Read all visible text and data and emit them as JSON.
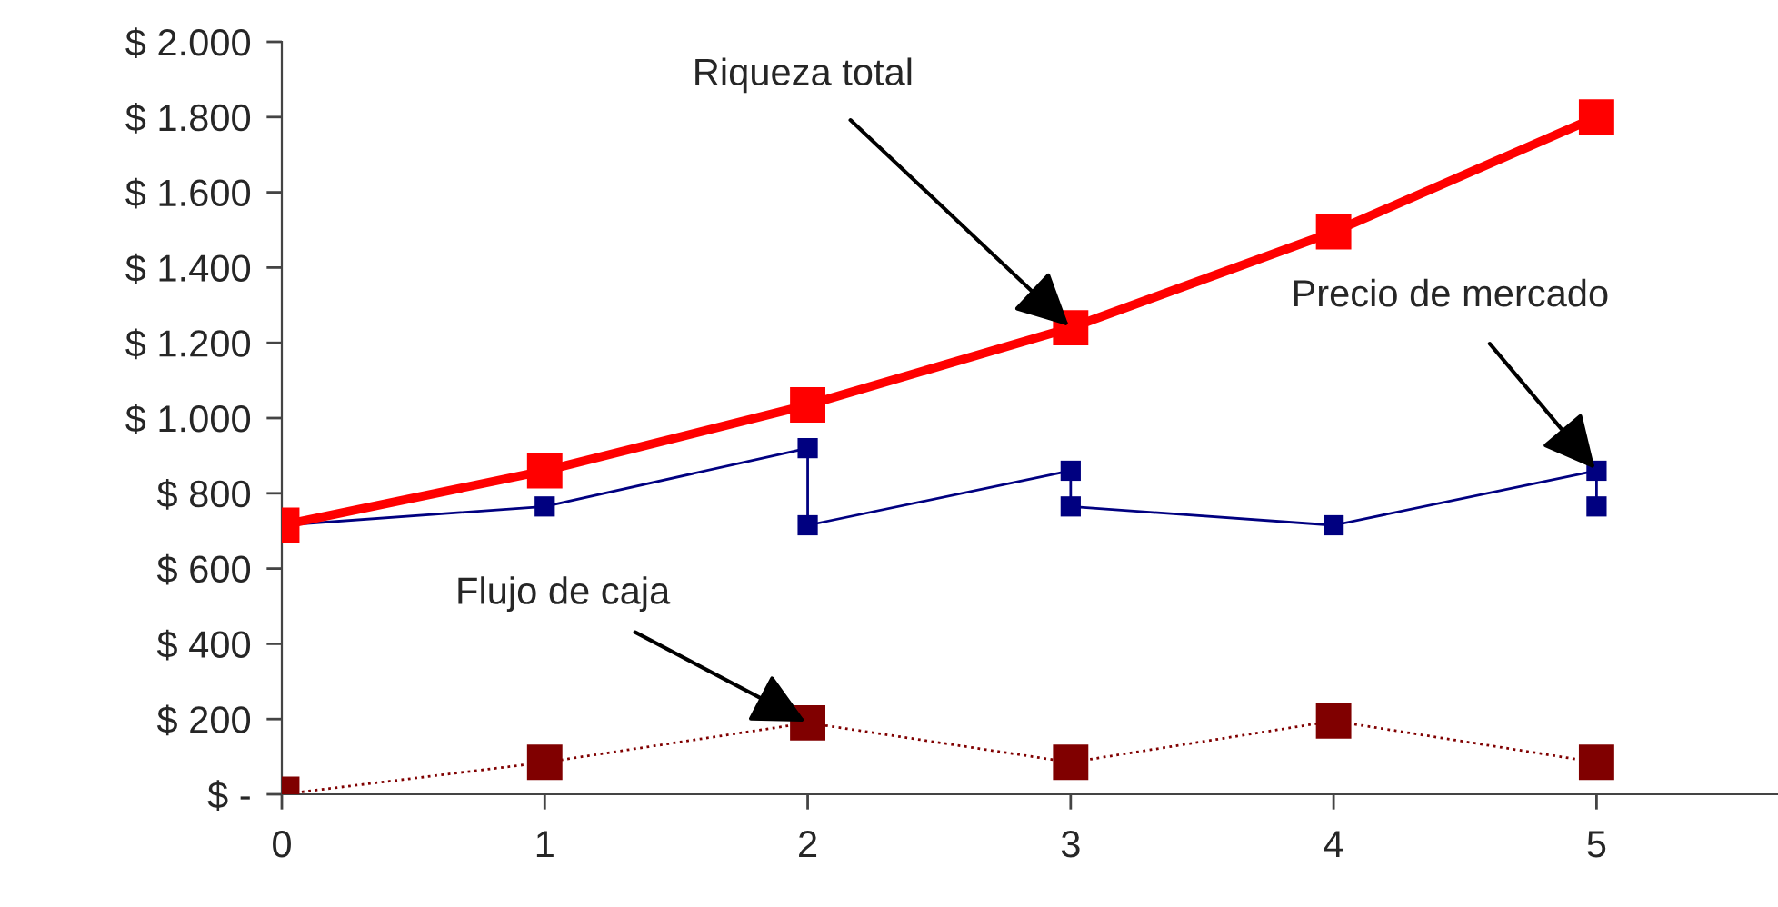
{
  "chart_data": {
    "type": "line",
    "xlim": [
      0,
      5.69
    ],
    "xticks": [
      0,
      1,
      2,
      3,
      4,
      5
    ],
    "ylim": [
      0,
      2000
    ],
    "yticks": [
      {
        "value": 0,
        "label": "$ -"
      },
      {
        "value": 200,
        "label": "$ 200"
      },
      {
        "value": 400,
        "label": "$ 400"
      },
      {
        "value": 600,
        "label": "$ 600"
      },
      {
        "value": 800,
        "label": "$ 800"
      },
      {
        "value": 1000,
        "label": "$ 1.000"
      },
      {
        "value": 1200,
        "label": "$ 1.200"
      },
      {
        "value": 1400,
        "label": "$ 1.400"
      },
      {
        "value": 1600,
        "label": "$ 1.600"
      },
      {
        "value": 1800,
        "label": "$ 1.800"
      },
      {
        "value": 2000,
        "label": "$ 2.000"
      }
    ],
    "grid": false,
    "legend": false,
    "marker": "square",
    "series": [
      {
        "color": "#000080",
        "x": [
          0,
          1,
          2,
          2,
          3,
          3,
          4,
          5,
          5
        ],
        "values": [
          715,
          765,
          920,
          715,
          860,
          765,
          715,
          860,
          765
        ],
        "line_style": "solid"
      },
      {
        "color": "#ff0000",
        "x": [
          0,
          1,
          2,
          3,
          4,
          5
        ],
        "values": [
          715,
          860,
          1035,
          1240,
          1495,
          1800
        ],
        "line_style": "solid"
      },
      {
        "color": "#800000",
        "x": [
          0,
          1,
          2,
          3,
          4,
          5
        ],
        "values": [
          0,
          85,
          190,
          85,
          195,
          85
        ],
        "line_style": "dotted"
      }
    ],
    "annotations": [
      {
        "text": "Riqueza total",
        "x": 3,
        "y": 1240
      },
      {
        "text": "Precio de mercado",
        "x": 5,
        "y": 860
      },
      {
        "text": "Flujo de caja",
        "x": 2,
        "y": 190
      }
    ]
  }
}
